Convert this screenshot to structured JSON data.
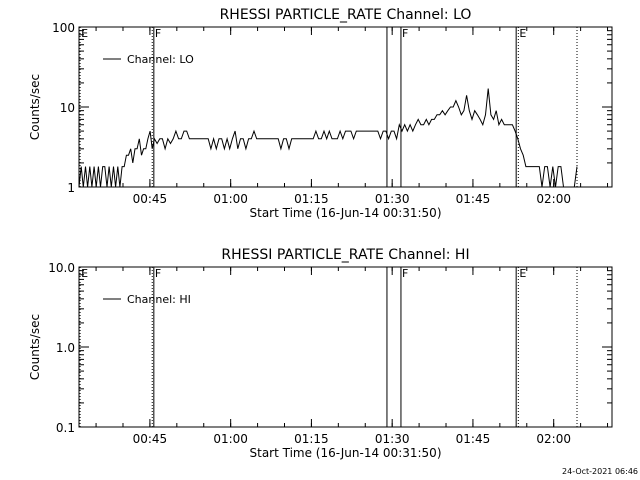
{
  "footer_timestamp": "24-Oct-2021 06:46",
  "chart_data": [
    {
      "type": "line",
      "title": "RHESSI PARTICLE_RATE Channel: LO",
      "xlabel": "Start Time (16-Jun-14 00:31:50)",
      "ylabel": "Counts/sec",
      "y_scale": "log",
      "xlim_minutes": [
        0,
        99
      ],
      "ylim": [
        1,
        100
      ],
      "x_ticks": [
        {
          "label": "00:45",
          "min": 13.17
        },
        {
          "label": "01:00",
          "min": 28.17
        },
        {
          "label": "01:15",
          "min": 43.17
        },
        {
          "label": "01:30",
          "min": 58.17
        },
        {
          "label": "01:45",
          "min": 73.17
        },
        {
          "label": "02:00",
          "min": 88.17
        }
      ],
      "y_ticks": [
        {
          "label": "1",
          "value": 1
        },
        {
          "label": "10",
          "value": 10
        },
        {
          "label": "100",
          "value": 100
        }
      ],
      "markers": [
        {
          "min": 0.2,
          "style": "dotted",
          "label": "E"
        },
        {
          "min": 13.6,
          "style": "dotted",
          "label": ""
        },
        {
          "min": 13.9,
          "style": "solid",
          "label": "F"
        },
        {
          "min": 57.2,
          "style": "solid",
          "label": ""
        },
        {
          "min": 59.8,
          "style": "solid",
          "label": "F"
        },
        {
          "min": 81.2,
          "style": "solid",
          "label": ""
        },
        {
          "min": 81.6,
          "style": "dotted",
          "label": "E"
        },
        {
          "min": 92.5,
          "style": "dotted",
          "label": ""
        }
      ],
      "legend": {
        "entries": [
          "Channel: LO"
        ],
        "placement": "top-left"
      },
      "series": [
        {
          "name": "Channel: LO",
          "points": [
            [
              0.0,
              1.0
            ],
            [
              0.4,
              1.8
            ],
            [
              0.8,
              1.0
            ],
            [
              1.2,
              1.8
            ],
            [
              1.6,
              1.0
            ],
            [
              2.0,
              1.8
            ],
            [
              2.4,
              1.0
            ],
            [
              2.8,
              1.8
            ],
            [
              3.2,
              1.0
            ],
            [
              3.6,
              1.8
            ],
            [
              4.0,
              1.0
            ],
            [
              4.4,
              1.8
            ],
            [
              4.8,
              1.8
            ],
            [
              5.2,
              1.0
            ],
            [
              5.6,
              1.8
            ],
            [
              6.0,
              1.0
            ],
            [
              6.4,
              1.8
            ],
            [
              6.8,
              1.0
            ],
            [
              7.2,
              1.8
            ],
            [
              7.6,
              1.0
            ],
            [
              8.0,
              1.8
            ],
            [
              8.4,
              1.8
            ],
            [
              8.8,
              2.5
            ],
            [
              9.2,
              2.5
            ],
            [
              9.6,
              3.0
            ],
            [
              10.0,
              2.0
            ],
            [
              10.4,
              3.0
            ],
            [
              10.8,
              3.0
            ],
            [
              11.2,
              4.0
            ],
            [
              11.6,
              2.5
            ],
            [
              12.0,
              3.0
            ],
            [
              12.4,
              3.0
            ],
            [
              12.8,
              4.0
            ],
            [
              13.2,
              5.0
            ],
            [
              13.6,
              3.0
            ],
            [
              14.0,
              4.0
            ],
            [
              14.5,
              3.5
            ],
            [
              15.0,
              4.0
            ],
            [
              15.5,
              4.0
            ],
            [
              16.0,
              3.0
            ],
            [
              16.5,
              4.0
            ],
            [
              17.0,
              3.5
            ],
            [
              17.5,
              4.0
            ],
            [
              18.0,
              5.0
            ],
            [
              18.5,
              4.0
            ],
            [
              19.0,
              4.0
            ],
            [
              19.5,
              5.0
            ],
            [
              20.0,
              5.0
            ],
            [
              20.5,
              4.0
            ],
            [
              21.0,
              4.0
            ],
            [
              21.5,
              4.0
            ],
            [
              22.0,
              4.0
            ],
            [
              22.5,
              4.0
            ],
            [
              23.0,
              4.0
            ],
            [
              23.5,
              4.0
            ],
            [
              24.0,
              4.0
            ],
            [
              24.5,
              3.0
            ],
            [
              25.0,
              4.0
            ],
            [
              25.5,
              3.0
            ],
            [
              26.0,
              4.0
            ],
            [
              26.5,
              4.0
            ],
            [
              27.0,
              3.0
            ],
            [
              27.5,
              4.0
            ],
            [
              28.0,
              3.0
            ],
            [
              28.5,
              4.0
            ],
            [
              29.0,
              5.0
            ],
            [
              29.5,
              3.0
            ],
            [
              30.0,
              4.0
            ],
            [
              30.5,
              4.0
            ],
            [
              31.0,
              3.0
            ],
            [
              31.5,
              4.0
            ],
            [
              32.0,
              4.0
            ],
            [
              32.5,
              5.0
            ],
            [
              33.0,
              4.0
            ],
            [
              33.5,
              4.0
            ],
            [
              34.0,
              4.0
            ],
            [
              34.5,
              4.0
            ],
            [
              35.0,
              4.0
            ],
            [
              35.5,
              4.0
            ],
            [
              36.0,
              4.0
            ],
            [
              36.5,
              4.0
            ],
            [
              37.0,
              4.0
            ],
            [
              37.5,
              3.0
            ],
            [
              38.0,
              4.0
            ],
            [
              38.5,
              4.0
            ],
            [
              39.0,
              3.0
            ],
            [
              39.5,
              4.0
            ],
            [
              40.0,
              4.0
            ],
            [
              40.5,
              4.0
            ],
            [
              41.0,
              4.0
            ],
            [
              41.5,
              4.0
            ],
            [
              42.0,
              4.0
            ],
            [
              42.5,
              4.0
            ],
            [
              43.0,
              4.0
            ],
            [
              43.5,
              4.0
            ],
            [
              44.0,
              5.0
            ],
            [
              44.5,
              4.0
            ],
            [
              45.0,
              4.0
            ],
            [
              45.5,
              5.0
            ],
            [
              46.0,
              4.0
            ],
            [
              46.5,
              5.0
            ],
            [
              47.0,
              4.0
            ],
            [
              47.5,
              4.0
            ],
            [
              48.0,
              4.0
            ],
            [
              48.5,
              5.0
            ],
            [
              49.0,
              4.0
            ],
            [
              49.5,
              5.0
            ],
            [
              50.0,
              5.0
            ],
            [
              50.5,
              5.0
            ],
            [
              51.0,
              4.0
            ],
            [
              51.5,
              5.0
            ],
            [
              52.0,
              5.0
            ],
            [
              52.5,
              5.0
            ],
            [
              53.0,
              5.0
            ],
            [
              53.5,
              5.0
            ],
            [
              54.0,
              5.0
            ],
            [
              54.5,
              5.0
            ],
            [
              55.0,
              5.0
            ],
            [
              55.5,
              5.0
            ],
            [
              56.0,
              4.0
            ],
            [
              56.5,
              5.0
            ],
            [
              57.0,
              5.0
            ],
            [
              57.5,
              4.0
            ],
            [
              58.0,
              5.0
            ],
            [
              58.5,
              5.0
            ],
            [
              59.0,
              4.0
            ],
            [
              59.5,
              6.0
            ],
            [
              60.0,
              5.0
            ],
            [
              60.5,
              6.0
            ],
            [
              61.0,
              5.0
            ],
            [
              61.5,
              6.0
            ],
            [
              62.0,
              5.0
            ],
            [
              62.5,
              6.0
            ],
            [
              63.0,
              7.0
            ],
            [
              63.5,
              6.0
            ],
            [
              64.0,
              6.0
            ],
            [
              64.5,
              7.0
            ],
            [
              65.0,
              6.0
            ],
            [
              65.5,
              7.0
            ],
            [
              66.0,
              7.0
            ],
            [
              66.5,
              8.0
            ],
            [
              67.0,
              8.0
            ],
            [
              67.5,
              9.0
            ],
            [
              68.0,
              8.0
            ],
            [
              68.5,
              9.0
            ],
            [
              69.0,
              10.0
            ],
            [
              69.5,
              10.0
            ],
            [
              70.0,
              12.0
            ],
            [
              70.5,
              10.0
            ],
            [
              71.0,
              8.0
            ],
            [
              71.5,
              9.0
            ],
            [
              72.0,
              14.0
            ],
            [
              72.5,
              9.0
            ],
            [
              73.0,
              7.0
            ],
            [
              73.5,
              9.0
            ],
            [
              74.0,
              8.0
            ],
            [
              74.5,
              7.0
            ],
            [
              75.0,
              6.0
            ],
            [
              75.5,
              8.0
            ],
            [
              76.0,
              17.0
            ],
            [
              76.5,
              8.0
            ],
            [
              77.0,
              7.0
            ],
            [
              77.5,
              9.0
            ],
            [
              78.0,
              6.0
            ],
            [
              78.5,
              7.0
            ],
            [
              79.0,
              6.0
            ],
            [
              79.5,
              6.0
            ],
            [
              80.0,
              6.0
            ],
            [
              80.5,
              6.0
            ],
            [
              81.0,
              5.0
            ],
            [
              81.5,
              4.0
            ],
            [
              82.0,
              3.0
            ],
            [
              82.5,
              2.5
            ],
            [
              83.0,
              1.8
            ],
            [
              83.5,
              1.8
            ],
            [
              84.0,
              1.8
            ],
            [
              84.5,
              1.8
            ],
            [
              85.0,
              1.8
            ],
            [
              85.5,
              1.8
            ],
            [
              86.0,
              1.0
            ],
            [
              86.5,
              1.8
            ],
            [
              87.0,
              1.8
            ],
            [
              87.5,
              1.0
            ],
            [
              88.0,
              1.8
            ],
            [
              88.5,
              1.0
            ],
            [
              89.0,
              1.8
            ],
            [
              89.5,
              1.8
            ],
            [
              90.0,
              1.0
            ],
            [
              90.5,
              1.0
            ],
            [
              91.0,
              1.0
            ],
            [
              91.5,
              1.0
            ],
            [
              92.0,
              1.0
            ],
            [
              92.5,
              1.8
            ]
          ]
        }
      ]
    },
    {
      "type": "line",
      "title": "RHESSI PARTICLE_RATE Channel: HI",
      "xlabel": "Start Time (16-Jun-14 00:31:50)",
      "ylabel": "Counts/sec",
      "y_scale": "log",
      "xlim_minutes": [
        0,
        99
      ],
      "ylim": [
        0.1,
        10.0
      ],
      "x_ticks": [
        {
          "label": "00:45",
          "min": 13.17
        },
        {
          "label": "01:00",
          "min": 28.17
        },
        {
          "label": "01:15",
          "min": 43.17
        },
        {
          "label": "01:30",
          "min": 58.17
        },
        {
          "label": "01:45",
          "min": 73.17
        },
        {
          "label": "02:00",
          "min": 88.17
        }
      ],
      "y_ticks": [
        {
          "label": "0.1",
          "value": 0.1
        },
        {
          "label": "1.0",
          "value": 1.0
        },
        {
          "label": "10.0",
          "value": 10.0
        }
      ],
      "markers": [
        {
          "min": 0.2,
          "style": "dotted",
          "label": "E"
        },
        {
          "min": 13.6,
          "style": "dotted",
          "label": ""
        },
        {
          "min": 13.9,
          "style": "solid",
          "label": "F"
        },
        {
          "min": 57.2,
          "style": "solid",
          "label": ""
        },
        {
          "min": 59.8,
          "style": "solid",
          "label": "F"
        },
        {
          "min": 81.2,
          "style": "solid",
          "label": ""
        },
        {
          "min": 81.6,
          "style": "dotted",
          "label": "E"
        },
        {
          "min": 92.5,
          "style": "dotted",
          "label": ""
        }
      ],
      "legend": {
        "entries": [
          "Channel: HI"
        ],
        "placement": "top-left"
      },
      "series": [
        {
          "name": "Channel: HI",
          "points": []
        }
      ]
    }
  ]
}
